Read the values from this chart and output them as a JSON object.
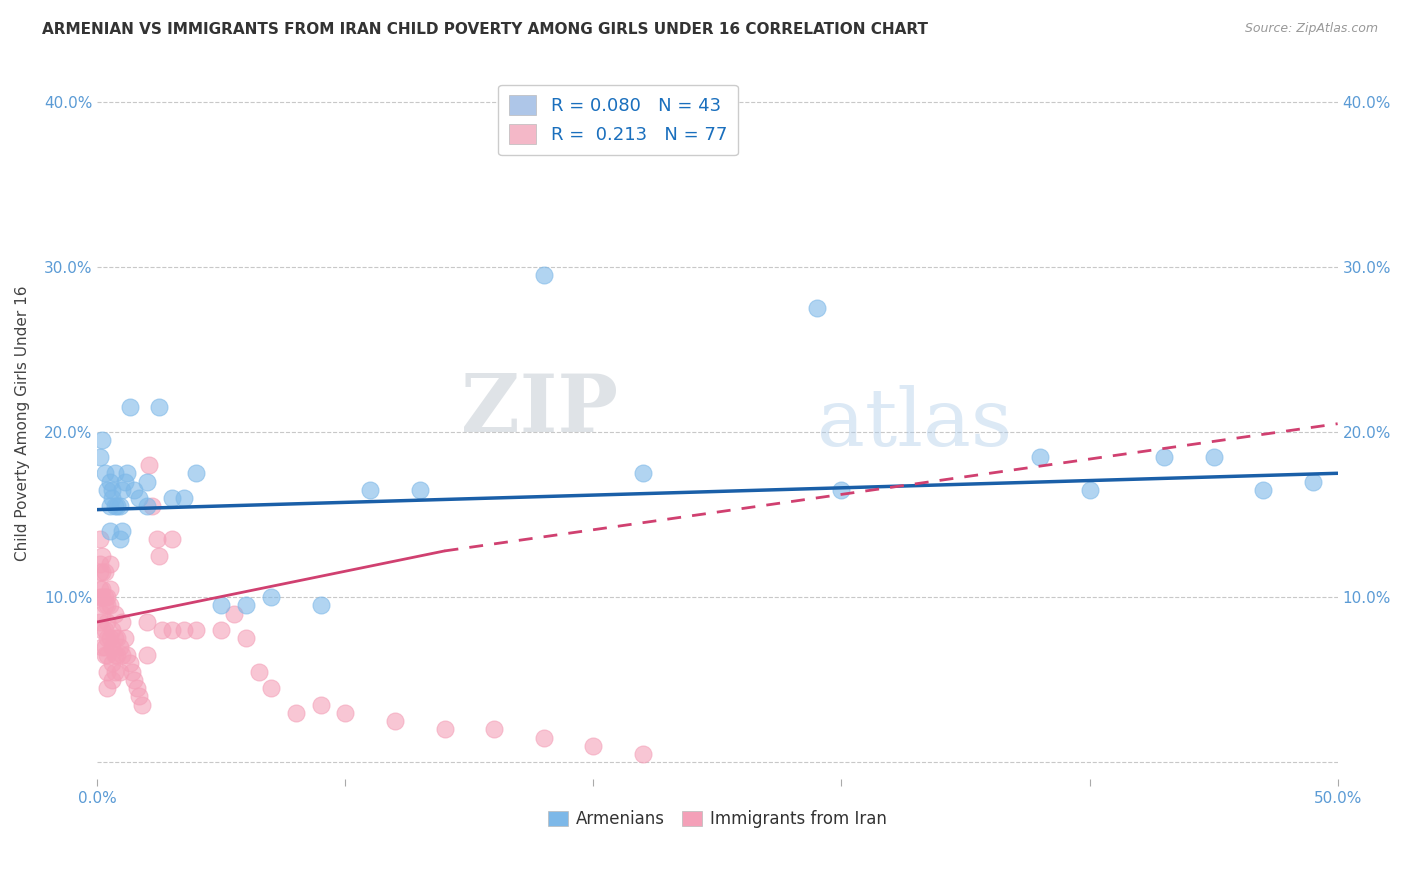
{
  "title": "ARMENIAN VS IMMIGRANTS FROM IRAN CHILD POVERTY AMONG GIRLS UNDER 16 CORRELATION CHART",
  "source": "Source: ZipAtlas.com",
  "ylabel": "Child Poverty Among Girls Under 16",
  "xlim": [
    0.0,
    0.5
  ],
  "ylim": [
    -0.01,
    0.42
  ],
  "xticks": [
    0.0,
    0.1,
    0.2,
    0.3,
    0.4,
    0.5
  ],
  "xticklabels": [
    "0.0%",
    "",
    "",
    "",
    "",
    "50.0%"
  ],
  "yticks": [
    0.0,
    0.1,
    0.2,
    0.3,
    0.4
  ],
  "yticklabels": [
    "",
    "10.0%",
    "20.0%",
    "30.0%",
    "40.0%"
  ],
  "legend_entries_labels": [
    "R = 0.080   N = 43",
    "R =  0.213   N = 77"
  ],
  "bottom_legend": [
    "Armenians",
    "Immigrants from Iran"
  ],
  "blue_color": "#7db8e8",
  "pink_color": "#f4a0b8",
  "trendline_blue": "#1a5fa8",
  "trendline_pink": "#d04070",
  "background_color": "#ffffff",
  "grid_color": "#c8c8c8",
  "watermark_zip": "ZIP",
  "watermark_atlas": "atlas",
  "armenian_x": [
    0.001,
    0.002,
    0.003,
    0.004,
    0.005,
    0.005,
    0.005,
    0.006,
    0.006,
    0.007,
    0.007,
    0.008,
    0.009,
    0.009,
    0.01,
    0.01,
    0.011,
    0.012,
    0.013,
    0.015,
    0.017,
    0.02,
    0.02,
    0.025,
    0.03,
    0.035,
    0.04,
    0.05,
    0.06,
    0.07,
    0.09,
    0.11,
    0.13,
    0.18,
    0.22,
    0.29,
    0.3,
    0.38,
    0.4,
    0.43,
    0.45,
    0.47,
    0.49
  ],
  "armenian_y": [
    0.185,
    0.195,
    0.175,
    0.165,
    0.155,
    0.14,
    0.17,
    0.165,
    0.16,
    0.175,
    0.155,
    0.155,
    0.155,
    0.135,
    0.165,
    0.14,
    0.17,
    0.175,
    0.215,
    0.165,
    0.16,
    0.17,
    0.155,
    0.215,
    0.16,
    0.16,
    0.175,
    0.095,
    0.095,
    0.1,
    0.095,
    0.165,
    0.165,
    0.295,
    0.175,
    0.275,
    0.165,
    0.185,
    0.165,
    0.185,
    0.185,
    0.165,
    0.17
  ],
  "iran_x": [
    0.001,
    0.001,
    0.001,
    0.001,
    0.001,
    0.001,
    0.002,
    0.002,
    0.002,
    0.002,
    0.002,
    0.002,
    0.002,
    0.003,
    0.003,
    0.003,
    0.003,
    0.003,
    0.003,
    0.004,
    0.004,
    0.004,
    0.004,
    0.004,
    0.004,
    0.004,
    0.005,
    0.005,
    0.005,
    0.005,
    0.006,
    0.006,
    0.006,
    0.006,
    0.007,
    0.007,
    0.007,
    0.007,
    0.008,
    0.008,
    0.009,
    0.009,
    0.01,
    0.01,
    0.011,
    0.012,
    0.013,
    0.014,
    0.015,
    0.016,
    0.017,
    0.018,
    0.02,
    0.02,
    0.021,
    0.022,
    0.024,
    0.025,
    0.026,
    0.03,
    0.03,
    0.035,
    0.04,
    0.05,
    0.055,
    0.06,
    0.065,
    0.07,
    0.08,
    0.09,
    0.1,
    0.12,
    0.14,
    0.16,
    0.18,
    0.2,
    0.22
  ],
  "iran_y": [
    0.135,
    0.12,
    0.115,
    0.105,
    0.1,
    0.085,
    0.125,
    0.115,
    0.105,
    0.1,
    0.09,
    0.08,
    0.07,
    0.115,
    0.1,
    0.095,
    0.08,
    0.07,
    0.065,
    0.1,
    0.095,
    0.085,
    0.075,
    0.065,
    0.055,
    0.045,
    0.12,
    0.105,
    0.095,
    0.075,
    0.08,
    0.07,
    0.06,
    0.05,
    0.09,
    0.075,
    0.065,
    0.055,
    0.075,
    0.065,
    0.07,
    0.055,
    0.085,
    0.065,
    0.075,
    0.065,
    0.06,
    0.055,
    0.05,
    0.045,
    0.04,
    0.035,
    0.085,
    0.065,
    0.18,
    0.155,
    0.135,
    0.125,
    0.08,
    0.135,
    0.08,
    0.08,
    0.08,
    0.08,
    0.09,
    0.075,
    0.055,
    0.045,
    0.03,
    0.035,
    0.03,
    0.025,
    0.02,
    0.02,
    0.015,
    0.01,
    0.005
  ]
}
